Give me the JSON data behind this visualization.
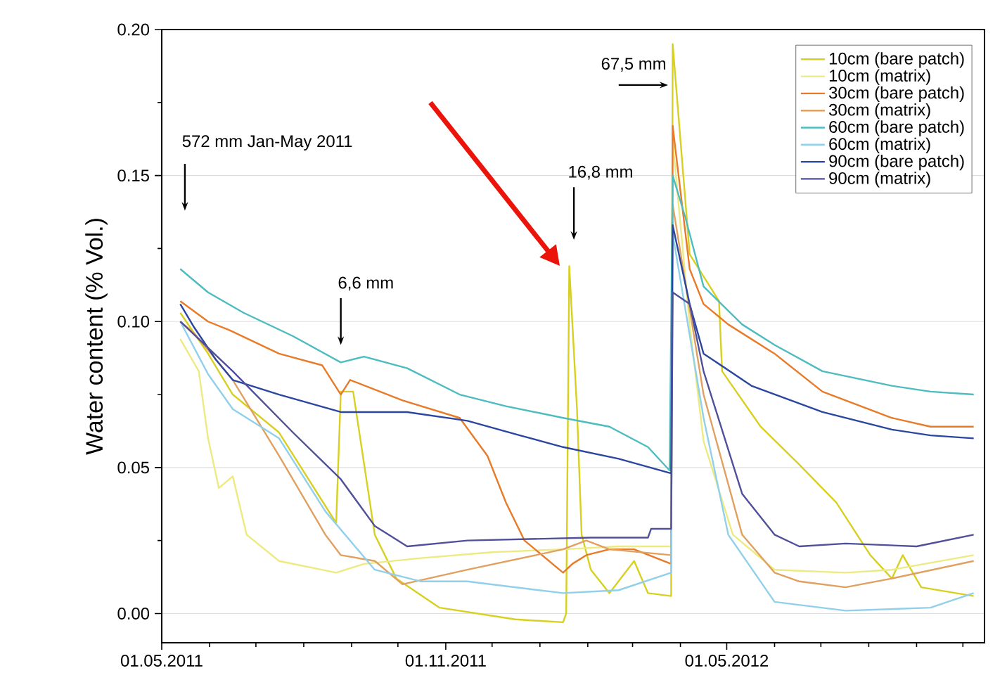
{
  "chart_data": {
    "type": "line",
    "ylabel": "Water content (% Vol.)",
    "xlim": [
      "2011-05-01",
      "2012-10-15"
    ],
    "ylim": [
      -0.01,
      0.2
    ],
    "xticks": [
      {
        "value": "2011-05-01",
        "label": "01.05.2011"
      },
      {
        "value": "2011-06-01",
        "label": null
      },
      {
        "value": "2011-07-01",
        "label": null
      },
      {
        "value": "2011-08-01",
        "label": null
      },
      {
        "value": "2011-09-01",
        "label": null
      },
      {
        "value": "2011-10-01",
        "label": null
      },
      {
        "value": "2011-11-01",
        "label": "01.11.2011"
      },
      {
        "value": "2011-12-01",
        "label": null
      },
      {
        "value": "2012-01-01",
        "label": null
      },
      {
        "value": "2012-02-01",
        "label": null
      },
      {
        "value": "2012-03-01",
        "label": null
      },
      {
        "value": "2012-04-01",
        "label": null
      },
      {
        "value": "2012-05-01",
        "label": "01.05.2012"
      },
      {
        "value": "2012-06-01",
        "label": null
      },
      {
        "value": "2012-07-01",
        "label": null
      },
      {
        "value": "2012-08-01",
        "label": null
      },
      {
        "value": "2012-09-01",
        "label": null
      },
      {
        "value": "2012-10-01",
        "label": null
      }
    ],
    "yticks": [
      {
        "value": 0,
        "label": "0.00"
      },
      {
        "value": 0.025,
        "label": null
      },
      {
        "value": 0.05,
        "label": "0.05"
      },
      {
        "value": 0.075,
        "label": null
      },
      {
        "value": 0.1,
        "label": "0.10"
      },
      {
        "value": 0.125,
        "label": null
      },
      {
        "value": 0.15,
        "label": "0.15"
      },
      {
        "value": 0.175,
        "label": null
      },
      {
        "value": 0.2,
        "label": "0.20"
      }
    ],
    "grid": "y",
    "legend": "top right",
    "marker": "none",
    "line_style": "solid",
    "series": [
      {
        "name": "10cm (bare patch)",
        "color": "#d8d020",
        "x": [
          "2011-05-13",
          "2011-05-31",
          "2011-06-16",
          "2011-07-16",
          "2011-08-22",
          "2011-08-25",
          "2011-09-02",
          "2011-09-16",
          "2011-09-30",
          "2011-10-28",
          "2011-12-16",
          "2012-01-16",
          "2012-01-18",
          "2012-01-20",
          "2012-01-25",
          "2012-01-28",
          "2012-02-03",
          "2012-02-15",
          "2012-03-02",
          "2012-03-11",
          "2012-03-26",
          "2012-03-27",
          "2012-04-07",
          "2012-04-26",
          "2012-04-28",
          "2012-05-23",
          "2012-06-17",
          "2012-07-11",
          "2012-08-02",
          "2012-08-16",
          "2012-08-23",
          "2012-09-04",
          "2012-10-08"
        ],
        "values": [
          0.103,
          0.089,
          0.075,
          0.062,
          0.031,
          0.076,
          0.076,
          0.027,
          0.012,
          0.002,
          -0.002,
          -0.003,
          0.0,
          0.119,
          0.07,
          0.027,
          0.015,
          0.007,
          0.018,
          0.007,
          0.006,
          0.195,
          0.123,
          0.107,
          0.083,
          0.064,
          0.051,
          0.038,
          0.02,
          0.012,
          0.02,
          0.009,
          0.006
        ]
      },
      {
        "name": "10cm (matrix)",
        "color": "#ecea80",
        "x": [
          "2011-05-13",
          "2011-05-25",
          "2011-05-31",
          "2011-06-07",
          "2011-06-16",
          "2011-06-25",
          "2011-07-16",
          "2011-08-22",
          "2011-09-09",
          "2011-10-16",
          "2011-12-01",
          "2012-01-16",
          "2012-02-21",
          "2012-03-26",
          "2012-03-27",
          "2012-04-07",
          "2012-04-16",
          "2012-05-05",
          "2012-06-01",
          "2012-07-17",
          "2012-08-16",
          "2012-10-08"
        ],
        "values": [
          0.094,
          0.083,
          0.06,
          0.043,
          0.047,
          0.027,
          0.018,
          0.014,
          0.017,
          0.019,
          0.021,
          0.022,
          0.023,
          0.023,
          0.162,
          0.099,
          0.059,
          0.027,
          0.015,
          0.014,
          0.015,
          0.02
        ]
      },
      {
        "name": "30cm (bare patch)",
        "color": "#e87a28",
        "x": [
          "2011-05-13",
          "2011-05-31",
          "2011-06-14",
          "2011-07-16",
          "2011-08-13",
          "2011-08-25",
          "2011-08-31",
          "2011-10-04",
          "2011-11-10",
          "2011-11-28",
          "2011-12-10",
          "2011-12-22",
          "2012-01-16",
          "2012-01-22",
          "2012-01-31",
          "2012-02-15",
          "2012-03-02",
          "2012-03-26",
          "2012-03-27",
          "2012-04-07",
          "2012-04-16",
          "2012-05-02",
          "2012-06-01",
          "2012-07-02",
          "2012-08-16",
          "2012-09-10",
          "2012-10-08"
        ],
        "values": [
          0.107,
          0.1,
          0.097,
          0.089,
          0.085,
          0.075,
          0.08,
          0.073,
          0.067,
          0.054,
          0.038,
          0.025,
          0.014,
          0.017,
          0.02,
          0.022,
          0.022,
          0.017,
          0.167,
          0.118,
          0.106,
          0.099,
          0.089,
          0.076,
          0.067,
          0.064,
          0.064
        ]
      },
      {
        "name": "30cm (matrix)",
        "color": "#e0a060",
        "x": [
          "2011-05-13",
          "2011-05-22",
          "2011-06-16",
          "2011-07-16",
          "2011-08-15",
          "2011-08-25",
          "2011-09-16",
          "2011-10-04",
          "2011-11-15",
          "2012-01-16",
          "2012-01-31",
          "2012-02-15",
          "2012-03-26",
          "2012-03-27",
          "2012-04-16",
          "2012-05-11",
          "2012-06-01",
          "2012-06-17",
          "2012-07-17",
          "2012-08-16",
          "2012-10-08"
        ],
        "values": [
          0.1,
          0.096,
          0.08,
          0.054,
          0.027,
          0.02,
          0.018,
          0.01,
          0.015,
          0.022,
          0.025,
          0.022,
          0.02,
          0.14,
          0.075,
          0.027,
          0.014,
          0.011,
          0.009,
          0.012,
          0.018
        ]
      },
      {
        "name": "60cm (bare patch)",
        "color": "#4cbcc0",
        "x": [
          "2011-05-13",
          "2011-05-31",
          "2011-06-23",
          "2011-07-25",
          "2011-08-25",
          "2011-09-09",
          "2011-10-07",
          "2011-11-10",
          "2011-12-10",
          "2012-01-16",
          "2012-02-15",
          "2012-03-11",
          "2012-03-25",
          "2012-03-27",
          "2012-04-04",
          "2012-04-16",
          "2012-05-11",
          "2012-06-01",
          "2012-07-02",
          "2012-08-16",
          "2012-09-10",
          "2012-10-08"
        ],
        "values": [
          0.118,
          0.11,
          0.103,
          0.095,
          0.086,
          0.088,
          0.084,
          0.075,
          0.071,
          0.067,
          0.064,
          0.057,
          0.049,
          0.15,
          0.136,
          0.112,
          0.099,
          0.092,
          0.083,
          0.078,
          0.076,
          0.075
        ]
      },
      {
        "name": "60cm (matrix)",
        "color": "#90d0ea",
        "x": [
          "2011-05-13",
          "2011-05-31",
          "2011-06-16",
          "2011-07-16",
          "2011-08-15",
          "2011-09-16",
          "2011-10-16",
          "2011-11-15",
          "2012-01-16",
          "2012-02-21",
          "2012-03-26",
          "2012-03-27",
          "2012-04-16",
          "2012-05-02",
          "2012-06-01",
          "2012-07-17",
          "2012-09-10",
          "2012-10-08"
        ],
        "values": [
          0.1,
          0.082,
          0.07,
          0.06,
          0.035,
          0.015,
          0.011,
          0.011,
          0.007,
          0.008,
          0.014,
          0.13,
          0.067,
          0.027,
          0.004,
          0.001,
          0.002,
          0.007
        ]
      },
      {
        "name": "90cm (bare patch)",
        "color": "#2a46a0",
        "x": [
          "2011-05-13",
          "2011-05-22",
          "2011-06-05",
          "2011-06-16",
          "2011-07-16",
          "2011-08-25",
          "2011-10-07",
          "2011-11-15",
          "2011-12-19",
          "2012-01-16",
          "2012-02-21",
          "2012-03-26",
          "2012-03-27",
          "2012-04-07",
          "2012-04-16",
          "2012-05-17",
          "2012-07-02",
          "2012-08-16",
          "2012-09-10",
          "2012-10-08"
        ],
        "values": [
          0.106,
          0.098,
          0.087,
          0.08,
          0.075,
          0.069,
          0.069,
          0.066,
          0.061,
          0.057,
          0.053,
          0.048,
          0.133,
          0.106,
          0.089,
          0.078,
          0.069,
          0.063,
          0.061,
          0.06
        ]
      },
      {
        "name": "90cm (matrix)",
        "color": "#50509a",
        "x": [
          "2011-05-13",
          "2011-06-16",
          "2011-07-25",
          "2011-08-25",
          "2011-09-16",
          "2011-10-07",
          "2011-11-15",
          "2012-02-03",
          "2012-03-11",
          "2012-03-13",
          "2012-03-26",
          "2012-03-27",
          "2012-04-07",
          "2012-04-16",
          "2012-05-11",
          "2012-06-01",
          "2012-06-17",
          "2012-07-17",
          "2012-09-01",
          "2012-10-08"
        ],
        "values": [
          0.1,
          0.083,
          0.062,
          0.046,
          0.03,
          0.023,
          0.025,
          0.026,
          0.026,
          0.029,
          0.029,
          0.11,
          0.106,
          0.083,
          0.041,
          0.027,
          0.023,
          0.024,
          0.023,
          0.027
        ]
      }
    ],
    "annotations": [
      "572 mm Jan-May 2011",
      "6,6 mm",
      "16,8 mm",
      "67,5 mm"
    ]
  }
}
